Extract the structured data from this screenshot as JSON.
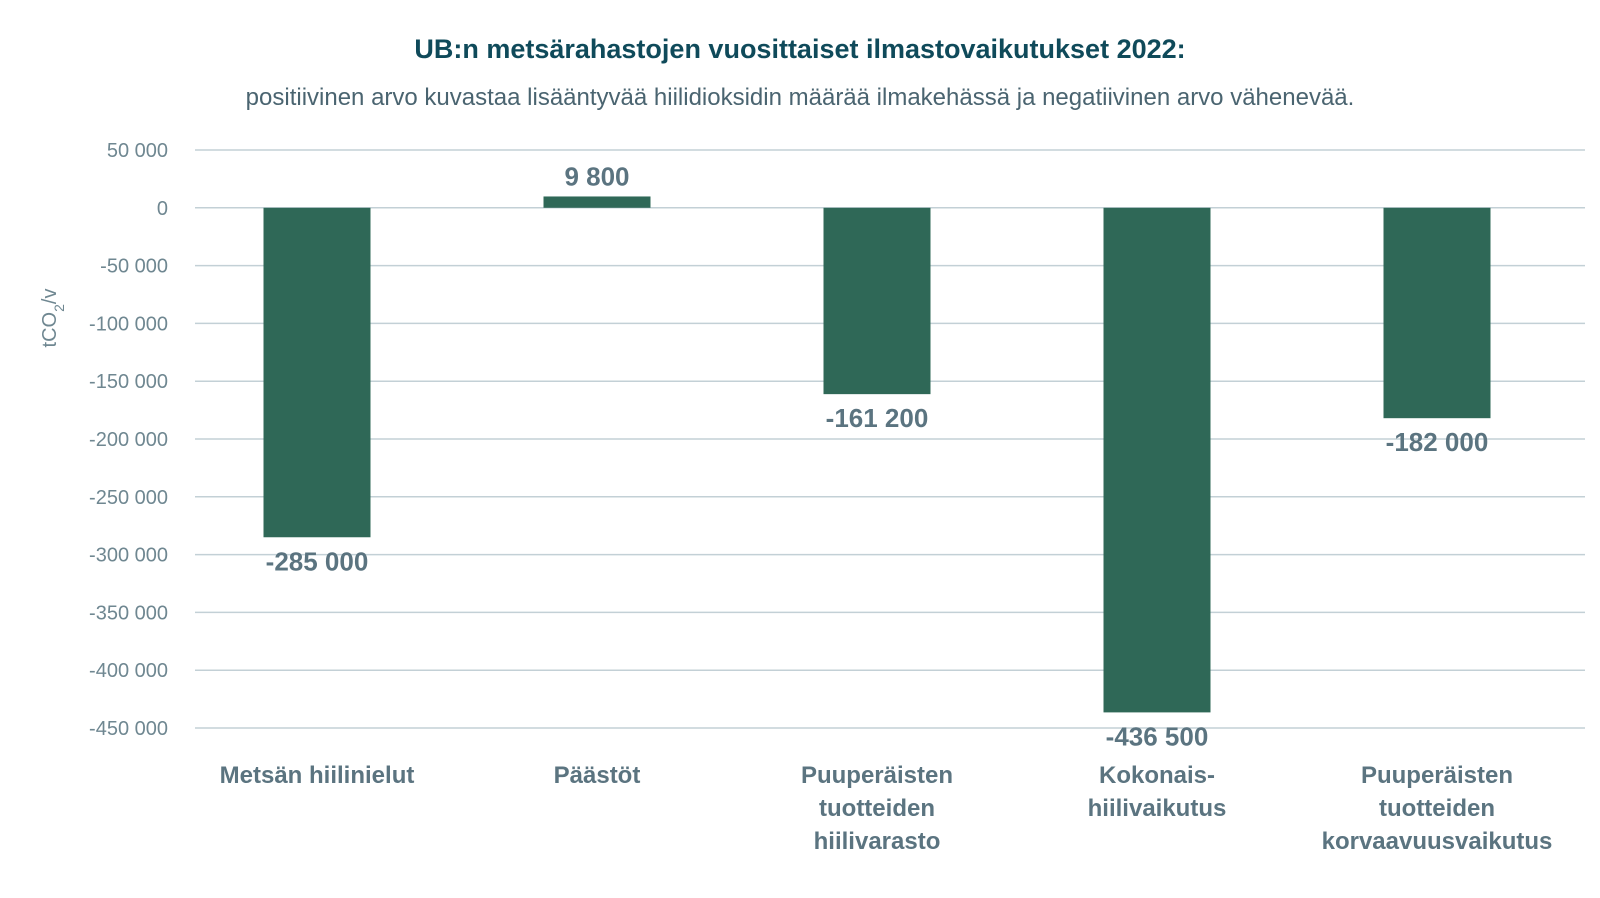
{
  "chart_data": {
    "type": "bar",
    "title": "UB:n metsärahastojen vuosittaiset ilmastovaikutukset 2022:",
    "subtitle": "positiivinen arvo kuvastaa lisääntyvää hiilidioksidin määrää ilmakehässä ja negatiivinen arvo vähenevää.",
    "ylabel": "tCO2/v",
    "ylim": [
      -450000,
      50000
    ],
    "yticks": [
      50000,
      0,
      -50000,
      -100000,
      -150000,
      -200000,
      -250000,
      -300000,
      -350000,
      -400000,
      -450000
    ],
    "ytick_labels": [
      "50 000",
      "0",
      "-50 000",
      "-100 000",
      "-150 000",
      "-200 000",
      "-250 000",
      "-300 000",
      "-350 000",
      "-400 000",
      "-450 000"
    ],
    "categories": [
      [
        "Metsän hiilinielut"
      ],
      [
        "Päästöt"
      ],
      [
        "Puuperäisten",
        "tuotteiden",
        "hiilivarasto"
      ],
      [
        "Kokonais-",
        "hiilivaikutus"
      ],
      [
        "Puuperäisten",
        "tuotteiden",
        "korvaavuusvaikutus"
      ]
    ],
    "values": [
      -285000,
      9800,
      -161200,
      -436500,
      -182000
    ],
    "value_labels": [
      "-285 000",
      "9 800",
      "-161 200",
      "-436 500",
      "-182 000"
    ],
    "grid": true,
    "legend": "none",
    "colors": {
      "bar": "#2f6857",
      "text": "#5b7480",
      "title": "#0f4a5a",
      "grid": "#c3d0d6"
    }
  }
}
